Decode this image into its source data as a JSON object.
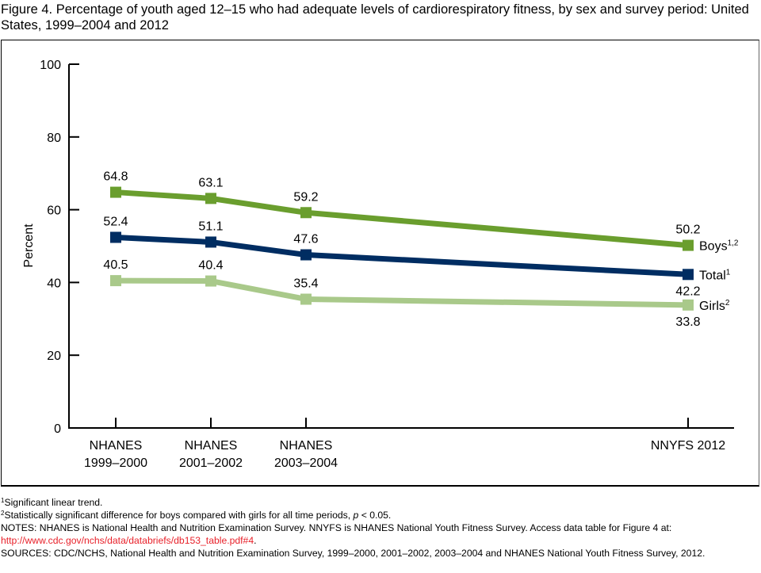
{
  "title": "Figure 4. Percentage of youth aged 12–15 who had adequate levels of cardiorespiratory fitness, by sex and survey period: United States, 1999–2004 and 2012",
  "chart_data": {
    "type": "line",
    "title": "Figure 4. Percentage of youth aged 12–15 who had adequate levels of cardiorespiratory fitness, by sex and survey period: United States, 1999–2004 and 2012",
    "xlabel": "",
    "ylabel": "Percent",
    "ylim": [
      0,
      100
    ],
    "yticks": [
      0,
      20,
      40,
      60,
      80,
      100
    ],
    "grid": false,
    "categories": [
      {
        "line1": "NHANES",
        "line2": "1999–2000"
      },
      {
        "line1": "NHANES",
        "line2": "2001–2002"
      },
      {
        "line1": "NHANES",
        "line2": "2003–2004"
      },
      {
        "line1": "NNYFS 2012",
        "line2": ""
      }
    ],
    "x_positions_years": [
      1999.5,
      2001.5,
      2003.5,
      2012
    ],
    "series": [
      {
        "name": "Boys",
        "superscript": "1,2",
        "color": "#6a9e2e",
        "values": [
          64.8,
          63.1,
          59.2,
          50.2
        ],
        "label_position": "above"
      },
      {
        "name": "Total",
        "superscript": "1",
        "color": "#002d62",
        "values": [
          52.4,
          51.1,
          47.6,
          42.2
        ],
        "label_position": "above-last-below"
      },
      {
        "name": "Girls",
        "superscript": "2",
        "color": "#a9c98a",
        "values": [
          40.5,
          40.4,
          35.4,
          33.8
        ],
        "label_position": "above-last-below"
      }
    ],
    "legend": "inline-right"
  },
  "footnotes": {
    "note1_sup": "1",
    "note1": "Significant linear trend.",
    "note2_sup": "2",
    "note2_a": "Statistically significant difference for boys compared with girls for all time periods, ",
    "note2_p": "p",
    "note2_b": " < 0.05.",
    "notes": "NOTES: NHANES is National Health and Nutrition Examination Survey. NNYFS is NHANES National Youth Fitness Survey. Access data table for Figure 4 at:",
    "link": "http://www.cdc.gov/nchs/data/databriefs/db153_table.pdf#4",
    "link_tail": ".",
    "sources": "SOURCES: CDC/NCHS, National Health and Nutrition Examination Survey, 1999–2000, 2001–2002, 2003–2004 and NHANES National Youth Fitness Survey, 2012."
  }
}
